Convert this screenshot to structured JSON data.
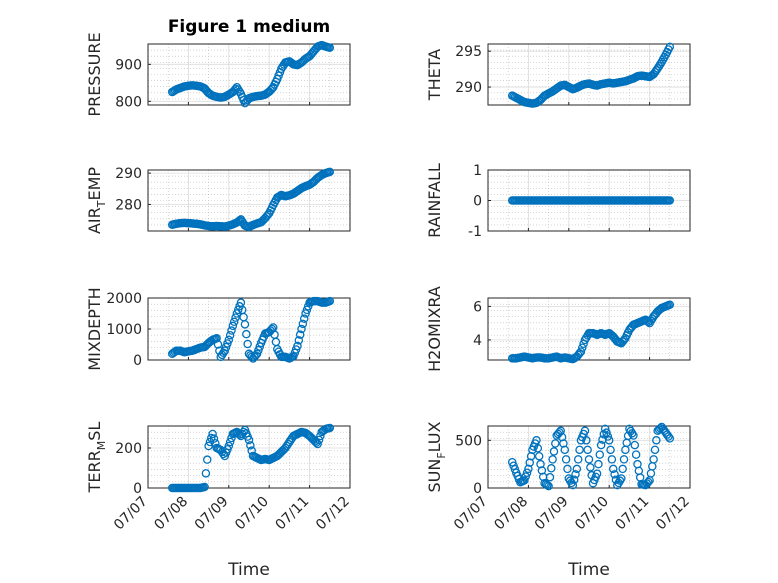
{
  "chart_data": [
    {
      "type": "scatter",
      "title": "Figure 1 medium",
      "ylabel": "PRESSURE",
      "ylabel_sub": "",
      "ylabel_rest": "",
      "ylim": [
        790,
        955
      ],
      "yticks": [
        800,
        900
      ],
      "xlim": [
        0,
        5
      ],
      "xticks": [
        0,
        1,
        2,
        3,
        4,
        5
      ],
      "xticklabels": [],
      "xlabel": "",
      "x": [
        0.6,
        0.7,
        0.8,
        0.9,
        1.0,
        1.1,
        1.2,
        1.3,
        1.4,
        1.5,
        1.6,
        1.7,
        1.8,
        1.9,
        2.0,
        2.1,
        2.2,
        2.3,
        2.4,
        2.5,
        2.6,
        2.7,
        2.8,
        2.9,
        3.0,
        3.1,
        3.2,
        3.3,
        3.4,
        3.5,
        3.6,
        3.7,
        3.8,
        3.9,
        4.0,
        4.1,
        4.2,
        4.3,
        4.4,
        4.5
      ],
      "y": [
        825,
        832,
        836,
        840,
        842,
        843,
        842,
        840,
        835,
        822,
        815,
        812,
        810,
        812,
        818,
        825,
        838,
        820,
        795,
        808,
        812,
        814,
        815,
        818,
        826,
        838,
        860,
        888,
        905,
        908,
        900,
        898,
        905,
        915,
        922,
        935,
        948,
        952,
        948,
        945
      ]
    },
    {
      "type": "scatter",
      "title": "",
      "ylabel": "THETA",
      "ylabel_sub": "",
      "ylabel_rest": "",
      "ylim": [
        287.5,
        296
      ],
      "yticks": [
        290,
        295
      ],
      "xlim": [
        0,
        5
      ],
      "xticks": [
        0,
        1,
        2,
        3,
        4,
        5
      ],
      "xticklabels": [],
      "xlabel": "",
      "x": [
        0.6,
        0.7,
        0.8,
        0.9,
        1.0,
        1.1,
        1.2,
        1.3,
        1.4,
        1.5,
        1.6,
        1.7,
        1.8,
        1.9,
        2.0,
        2.1,
        2.2,
        2.3,
        2.4,
        2.5,
        2.6,
        2.7,
        2.8,
        2.9,
        3.0,
        3.1,
        3.2,
        3.3,
        3.4,
        3.5,
        3.6,
        3.7,
        3.8,
        3.9,
        4.0,
        4.1,
        4.2,
        4.3,
        4.4,
        4.5
      ],
      "y": [
        288.8,
        288.5,
        288.2,
        287.9,
        287.8,
        287.7,
        287.8,
        288.2,
        288.8,
        289.1,
        289.4,
        289.8,
        290.2,
        290.3,
        290.0,
        289.7,
        289.9,
        290.2,
        290.4,
        290.5,
        290.3,
        290.2,
        290.4,
        290.5,
        290.6,
        290.5,
        290.6,
        290.7,
        290.8,
        291.0,
        291.2,
        291.5,
        291.6,
        291.5,
        291.4,
        291.8,
        292.6,
        293.5,
        294.5,
        295.6
      ]
    },
    {
      "type": "scatter",
      "title": "",
      "ylabel": "AIR",
      "ylabel_sub": "T",
      "ylabel_rest": "EMP",
      "ylim": [
        271.5,
        291
      ],
      "yticks": [
        280,
        290
      ],
      "xlim": [
        0,
        5
      ],
      "xticks": [
        0,
        1,
        2,
        3,
        4,
        5
      ],
      "xticklabels": [],
      "xlabel": "",
      "x": [
        0.6,
        0.7,
        0.8,
        0.9,
        1.0,
        1.1,
        1.2,
        1.3,
        1.4,
        1.5,
        1.6,
        1.7,
        1.8,
        1.9,
        2.0,
        2.1,
        2.2,
        2.3,
        2.4,
        2.5,
        2.6,
        2.7,
        2.8,
        2.9,
        3.0,
        3.1,
        3.2,
        3.3,
        3.4,
        3.5,
        3.6,
        3.7,
        3.8,
        3.9,
        4.0,
        4.1,
        4.2,
        4.3,
        4.4,
        4.5
      ],
      "y": [
        273.5,
        273.8,
        274.0,
        274.1,
        274.0,
        273.9,
        273.8,
        273.6,
        273.3,
        273.1,
        273.0,
        273.1,
        273.0,
        272.9,
        273.2,
        273.6,
        274.2,
        275.2,
        273.2,
        272.8,
        273.4,
        273.9,
        274.3,
        275.6,
        277.2,
        279.8,
        282.2,
        283.0,
        282.6,
        282.9,
        283.4,
        284.3,
        285.2,
        285.8,
        286.3,
        287.2,
        288.5,
        289.4,
        290.0,
        290.4
      ]
    },
    {
      "type": "scatter",
      "title": "",
      "ylabel": "RAINFALL",
      "ylabel_sub": "",
      "ylabel_rest": "",
      "ylim": [
        -1,
        1
      ],
      "yticks": [
        -1,
        0,
        1
      ],
      "xlim": [
        0,
        5
      ],
      "xticks": [
        0,
        1,
        2,
        3,
        4,
        5
      ],
      "xticklabels": [],
      "xlabel": "",
      "x": [
        0.6,
        0.7,
        0.8,
        0.9,
        1.0,
        1.1,
        1.2,
        1.3,
        1.4,
        1.5,
        1.6,
        1.7,
        1.8,
        1.9,
        2.0,
        2.1,
        2.2,
        2.3,
        2.4,
        2.5,
        2.6,
        2.7,
        2.8,
        2.9,
        3.0,
        3.1,
        3.2,
        3.3,
        3.4,
        3.5,
        3.6,
        3.7,
        3.8,
        3.9,
        4.0,
        4.1,
        4.2,
        4.3,
        4.4,
        4.5
      ],
      "y": [
        0,
        0,
        0,
        0,
        0,
        0,
        0,
        0,
        0,
        0,
        0,
        0,
        0,
        0,
        0,
        0,
        0,
        0,
        0,
        0,
        0,
        0,
        0,
        0,
        0,
        0,
        0,
        0,
        0,
        0,
        0,
        0,
        0,
        0,
        0,
        0,
        0,
        0,
        0,
        0
      ]
    },
    {
      "type": "scatter",
      "title": "",
      "ylabel": "MIXDEPTH",
      "ylabel_sub": "",
      "ylabel_rest": "",
      "ylim": [
        0,
        2000
      ],
      "yticks": [
        0,
        1000,
        2000
      ],
      "xlim": [
        0,
        5
      ],
      "xticks": [
        0,
        1,
        2,
        3,
        4,
        5
      ],
      "xticklabels": [],
      "xlabel": "",
      "x": [
        0.6,
        0.7,
        0.8,
        0.9,
        1.0,
        1.1,
        1.2,
        1.3,
        1.4,
        1.5,
        1.6,
        1.7,
        1.8,
        1.9,
        2.0,
        2.1,
        2.2,
        2.3,
        2.4,
        2.5,
        2.6,
        2.7,
        2.8,
        2.9,
        3.0,
        3.1,
        3.2,
        3.3,
        3.4,
        3.5,
        3.6,
        3.7,
        3.8,
        3.9,
        4.0,
        4.1,
        4.2,
        4.3,
        4.4,
        4.5
      ],
      "y": [
        200,
        300,
        300,
        250,
        280,
        300,
        350,
        400,
        420,
        550,
        650,
        700,
        100,
        300,
        650,
        1100,
        1500,
        1850,
        1150,
        200,
        50,
        200,
        550,
        850,
        900,
        1050,
        350,
        100,
        100,
        50,
        120,
        450,
        1000,
        1500,
        1850,
        1900,
        1900,
        1850,
        1850,
        1900
      ]
    },
    {
      "type": "scatter",
      "title": "",
      "ylabel": "H2OMIXRA",
      "ylabel_sub": "",
      "ylabel_rest": "",
      "ylim": [
        2.8,
        6.5
      ],
      "yticks": [
        4,
        6
      ],
      "xlim": [
        0,
        5
      ],
      "xticks": [
        0,
        1,
        2,
        3,
        4,
        5
      ],
      "xticklabels": [],
      "xlabel": "",
      "x": [
        0.6,
        0.7,
        0.8,
        0.9,
        1.0,
        1.1,
        1.2,
        1.3,
        1.4,
        1.5,
        1.6,
        1.7,
        1.8,
        1.9,
        2.0,
        2.1,
        2.2,
        2.3,
        2.4,
        2.5,
        2.6,
        2.7,
        2.8,
        2.9,
        3.0,
        3.1,
        3.2,
        3.3,
        3.4,
        3.5,
        3.6,
        3.7,
        3.8,
        3.9,
        4.0,
        4.1,
        4.2,
        4.3,
        4.4,
        4.5
      ],
      "y": [
        2.9,
        2.9,
        2.95,
        3.0,
        2.95,
        2.9,
        2.95,
        2.95,
        2.9,
        2.9,
        2.95,
        3.0,
        2.9,
        2.95,
        2.9,
        2.85,
        3.0,
        3.3,
        4.0,
        4.4,
        4.4,
        4.3,
        4.4,
        4.3,
        4.4,
        4.2,
        3.9,
        3.8,
        4.1,
        4.6,
        4.9,
        5.0,
        5.1,
        5.2,
        5.0,
        5.4,
        5.7,
        5.9,
        6.0,
        6.1
      ]
    },
    {
      "type": "scatter",
      "title": "",
      "ylabel": "TERR",
      "ylabel_sub": "M",
      "ylabel_rest": "SL",
      "ylim": [
        0,
        310
      ],
      "yticks": [
        0,
        200
      ],
      "xlim": [
        0,
        5
      ],
      "xticks": [
        0,
        1,
        2,
        3,
        4,
        5
      ],
      "xticklabels": [
        "07/07",
        "07/08",
        "07/09",
        "07/10",
        "07/11",
        "07/12"
      ],
      "xlabel": "Time",
      "x": [
        0.6,
        0.7,
        0.8,
        0.9,
        1.0,
        1.1,
        1.2,
        1.3,
        1.4,
        1.5,
        1.6,
        1.7,
        1.8,
        1.9,
        2.0,
        2.1,
        2.2,
        2.3,
        2.4,
        2.5,
        2.6,
        2.7,
        2.8,
        2.9,
        3.0,
        3.1,
        3.2,
        3.3,
        3.4,
        3.5,
        3.6,
        3.7,
        3.8,
        3.9,
        4.0,
        4.1,
        4.2,
        4.3,
        4.4,
        4.5
      ],
      "y": [
        0,
        0,
        0,
        0,
        0,
        0,
        0,
        0,
        5,
        210,
        270,
        200,
        190,
        160,
        210,
        270,
        280,
        260,
        290,
        240,
        160,
        150,
        140,
        145,
        140,
        150,
        160,
        180,
        200,
        230,
        260,
        270,
        280,
        275,
        260,
        240,
        220,
        280,
        295,
        300
      ]
    },
    {
      "type": "scatter",
      "title": "",
      "ylabel": "SUN",
      "ylabel_sub": "F",
      "ylabel_rest": "LUX",
      "ylim": [
        0,
        650
      ],
      "yticks": [
        0,
        500
      ],
      "xlim": [
        0,
        5
      ],
      "xticks": [
        0,
        1,
        2,
        3,
        4,
        5
      ],
      "xticklabels": [
        "07/07",
        "07/08",
        "07/09",
        "07/10",
        "07/11",
        "07/12"
      ],
      "xlabel": "Time",
      "x": [
        0.6,
        0.7,
        0.8,
        0.9,
        1.0,
        1.1,
        1.2,
        1.3,
        1.4,
        1.5,
        1.6,
        1.7,
        1.8,
        1.9,
        2.0,
        2.1,
        2.2,
        2.3,
        2.4,
        2.5,
        2.6,
        2.7,
        2.8,
        2.9,
        3.0,
        3.1,
        3.2,
        3.3,
        3.4,
        3.5,
        3.6,
        3.7,
        3.8,
        3.9,
        4.0,
        4.1,
        4.2,
        4.3,
        4.4,
        4.5
      ],
      "y": [
        270,
        160,
        60,
        80,
        200,
        400,
        500,
        250,
        50,
        20,
        300,
        550,
        600,
        400,
        100,
        30,
        200,
        500,
        600,
        300,
        50,
        150,
        450,
        620,
        500,
        200,
        30,
        100,
        400,
        620,
        550,
        250,
        40,
        30,
        80,
        300,
        600,
        640,
        580,
        520
      ]
    }
  ]
}
